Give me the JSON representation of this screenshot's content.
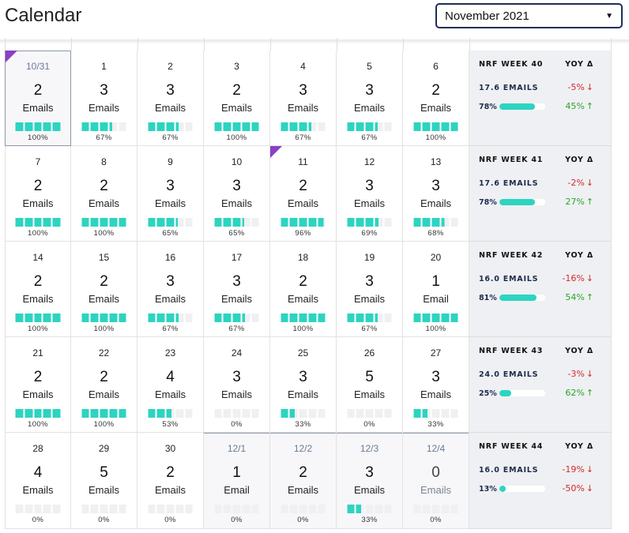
{
  "header": {
    "title": "Calendar",
    "month_select": "November 2021"
  },
  "colors": {
    "accent": "#2dd4c0",
    "flag": "#8a3fc8",
    "negative": "#d6282b",
    "positive": "#2ba52a"
  },
  "weeks": [
    {
      "days": [
        {
          "date": "10/31",
          "count": "2",
          "label": "Emails",
          "bar_fill": 1.0,
          "pct": "100%",
          "other": true,
          "flag": true
        },
        {
          "date": "1",
          "count": "3",
          "label": "Emails",
          "bar_fill": 0.67,
          "pct": "67%"
        },
        {
          "date": "2",
          "count": "3",
          "label": "Emails",
          "bar_fill": 0.67,
          "pct": "67%"
        },
        {
          "date": "3",
          "count": "2",
          "label": "Emails",
          "bar_fill": 1.0,
          "pct": "100%"
        },
        {
          "date": "4",
          "count": "3",
          "label": "Emails",
          "bar_fill": 0.67,
          "pct": "67%"
        },
        {
          "date": "5",
          "count": "3",
          "label": "Emails",
          "bar_fill": 0.67,
          "pct": "67%"
        },
        {
          "date": "6",
          "count": "2",
          "label": "Emails",
          "bar_fill": 1.0,
          "pct": "100%"
        }
      ],
      "summary": {
        "week": "NRF WEEK 40",
        "yoy": "YOY Δ",
        "emails": "17.6 EMAILS",
        "emails_delta": "-5%",
        "emails_dir": "down",
        "pct": "78%",
        "pct_fill": 0.78,
        "pct_delta": "45%",
        "pct_dir": "up"
      }
    },
    {
      "days": [
        {
          "date": "7",
          "count": "2",
          "label": "Emails",
          "bar_fill": 1.0,
          "pct": "100%"
        },
        {
          "date": "8",
          "count": "2",
          "label": "Emails",
          "bar_fill": 1.0,
          "pct": "100%"
        },
        {
          "date": "9",
          "count": "3",
          "label": "Emails",
          "bar_fill": 0.65,
          "pct": "65%"
        },
        {
          "date": "10",
          "count": "3",
          "label": "Emails",
          "bar_fill": 0.65,
          "pct": "65%"
        },
        {
          "date": "11",
          "count": "2",
          "label": "Emails",
          "bar_fill": 0.96,
          "pct": "96%",
          "flag": true
        },
        {
          "date": "12",
          "count": "3",
          "label": "Emails",
          "bar_fill": 0.69,
          "pct": "69%"
        },
        {
          "date": "13",
          "count": "3",
          "label": "Emails",
          "bar_fill": 0.68,
          "pct": "68%"
        }
      ],
      "summary": {
        "week": "NRF WEEK 41",
        "yoy": "YOY Δ",
        "emails": "17.6 EMAILS",
        "emails_delta": "-2%",
        "emails_dir": "down",
        "pct": "78%",
        "pct_fill": 0.78,
        "pct_delta": "27%",
        "pct_dir": "up"
      }
    },
    {
      "days": [
        {
          "date": "14",
          "count": "2",
          "label": "Emails",
          "bar_fill": 1.0,
          "pct": "100%"
        },
        {
          "date": "15",
          "count": "2",
          "label": "Emails",
          "bar_fill": 1.0,
          "pct": "100%"
        },
        {
          "date": "16",
          "count": "3",
          "label": "Emails",
          "bar_fill": 0.67,
          "pct": "67%"
        },
        {
          "date": "17",
          "count": "3",
          "label": "Emails",
          "bar_fill": 0.67,
          "pct": "67%"
        },
        {
          "date": "18",
          "count": "2",
          "label": "Emails",
          "bar_fill": 1.0,
          "pct": "100%"
        },
        {
          "date": "19",
          "count": "3",
          "label": "Emails",
          "bar_fill": 0.67,
          "pct": "67%"
        },
        {
          "date": "20",
          "count": "1",
          "label": "Email",
          "bar_fill": 1.0,
          "pct": "100%"
        }
      ],
      "summary": {
        "week": "NRF WEEK 42",
        "yoy": "YOY Δ",
        "emails": "16.0 EMAILS",
        "emails_delta": "-16%",
        "emails_dir": "down",
        "pct": "81%",
        "pct_fill": 0.81,
        "pct_delta": "54%",
        "pct_dir": "up"
      }
    },
    {
      "days": [
        {
          "date": "21",
          "count": "2",
          "label": "Emails",
          "bar_fill": 1.0,
          "pct": "100%"
        },
        {
          "date": "22",
          "count": "2",
          "label": "Emails",
          "bar_fill": 1.0,
          "pct": "100%"
        },
        {
          "date": "23",
          "count": "4",
          "label": "Emails",
          "bar_fill": 0.53,
          "pct": "53%"
        },
        {
          "date": "24",
          "count": "3",
          "label": "Emails",
          "bar_fill": 0.0,
          "pct": "0%"
        },
        {
          "date": "25",
          "count": "3",
          "label": "Emails",
          "bar_fill": 0.33,
          "pct": "33%"
        },
        {
          "date": "26",
          "count": "5",
          "label": "Emails",
          "bar_fill": 0.0,
          "pct": "0%"
        },
        {
          "date": "27",
          "count": "3",
          "label": "Emails",
          "bar_fill": 0.33,
          "pct": "33%"
        }
      ],
      "summary": {
        "week": "NRF WEEK 43",
        "yoy": "YOY Δ",
        "emails": "24.0 EMAILS",
        "emails_delta": "-3%",
        "emails_dir": "down",
        "pct": "25%",
        "pct_fill": 0.25,
        "pct_delta": "62%",
        "pct_dir": "up"
      }
    },
    {
      "days": [
        {
          "date": "28",
          "count": "4",
          "label": "Emails",
          "bar_fill": 0.0,
          "pct": "0%"
        },
        {
          "date": "29",
          "count": "5",
          "label": "Emails",
          "bar_fill": 0.0,
          "pct": "0%"
        },
        {
          "date": "30",
          "count": "2",
          "label": "Emails",
          "bar_fill": 0.0,
          "pct": "0%"
        },
        {
          "date": "12/1",
          "count": "1",
          "label": "Email",
          "bar_fill": 0.0,
          "pct": "0%",
          "other": true
        },
        {
          "date": "12/2",
          "count": "2",
          "label": "Emails",
          "bar_fill": 0.0,
          "pct": "0%",
          "other": true
        },
        {
          "date": "12/3",
          "count": "3",
          "label": "Emails",
          "bar_fill": 0.33,
          "pct": "33%",
          "other": true
        },
        {
          "date": "12/4",
          "count": "0",
          "label": "Emails",
          "bar_fill": 0.0,
          "pct": "0%",
          "other": true,
          "zero": true
        }
      ],
      "summary": {
        "week": "NRF WEEK 44",
        "yoy": "YOY Δ",
        "emails": "16.0 EMAILS",
        "emails_delta": "-19%",
        "emails_dir": "down",
        "pct": "13%",
        "pct_fill": 0.13,
        "pct_delta": "-50%",
        "pct_dir": "down"
      }
    }
  ]
}
